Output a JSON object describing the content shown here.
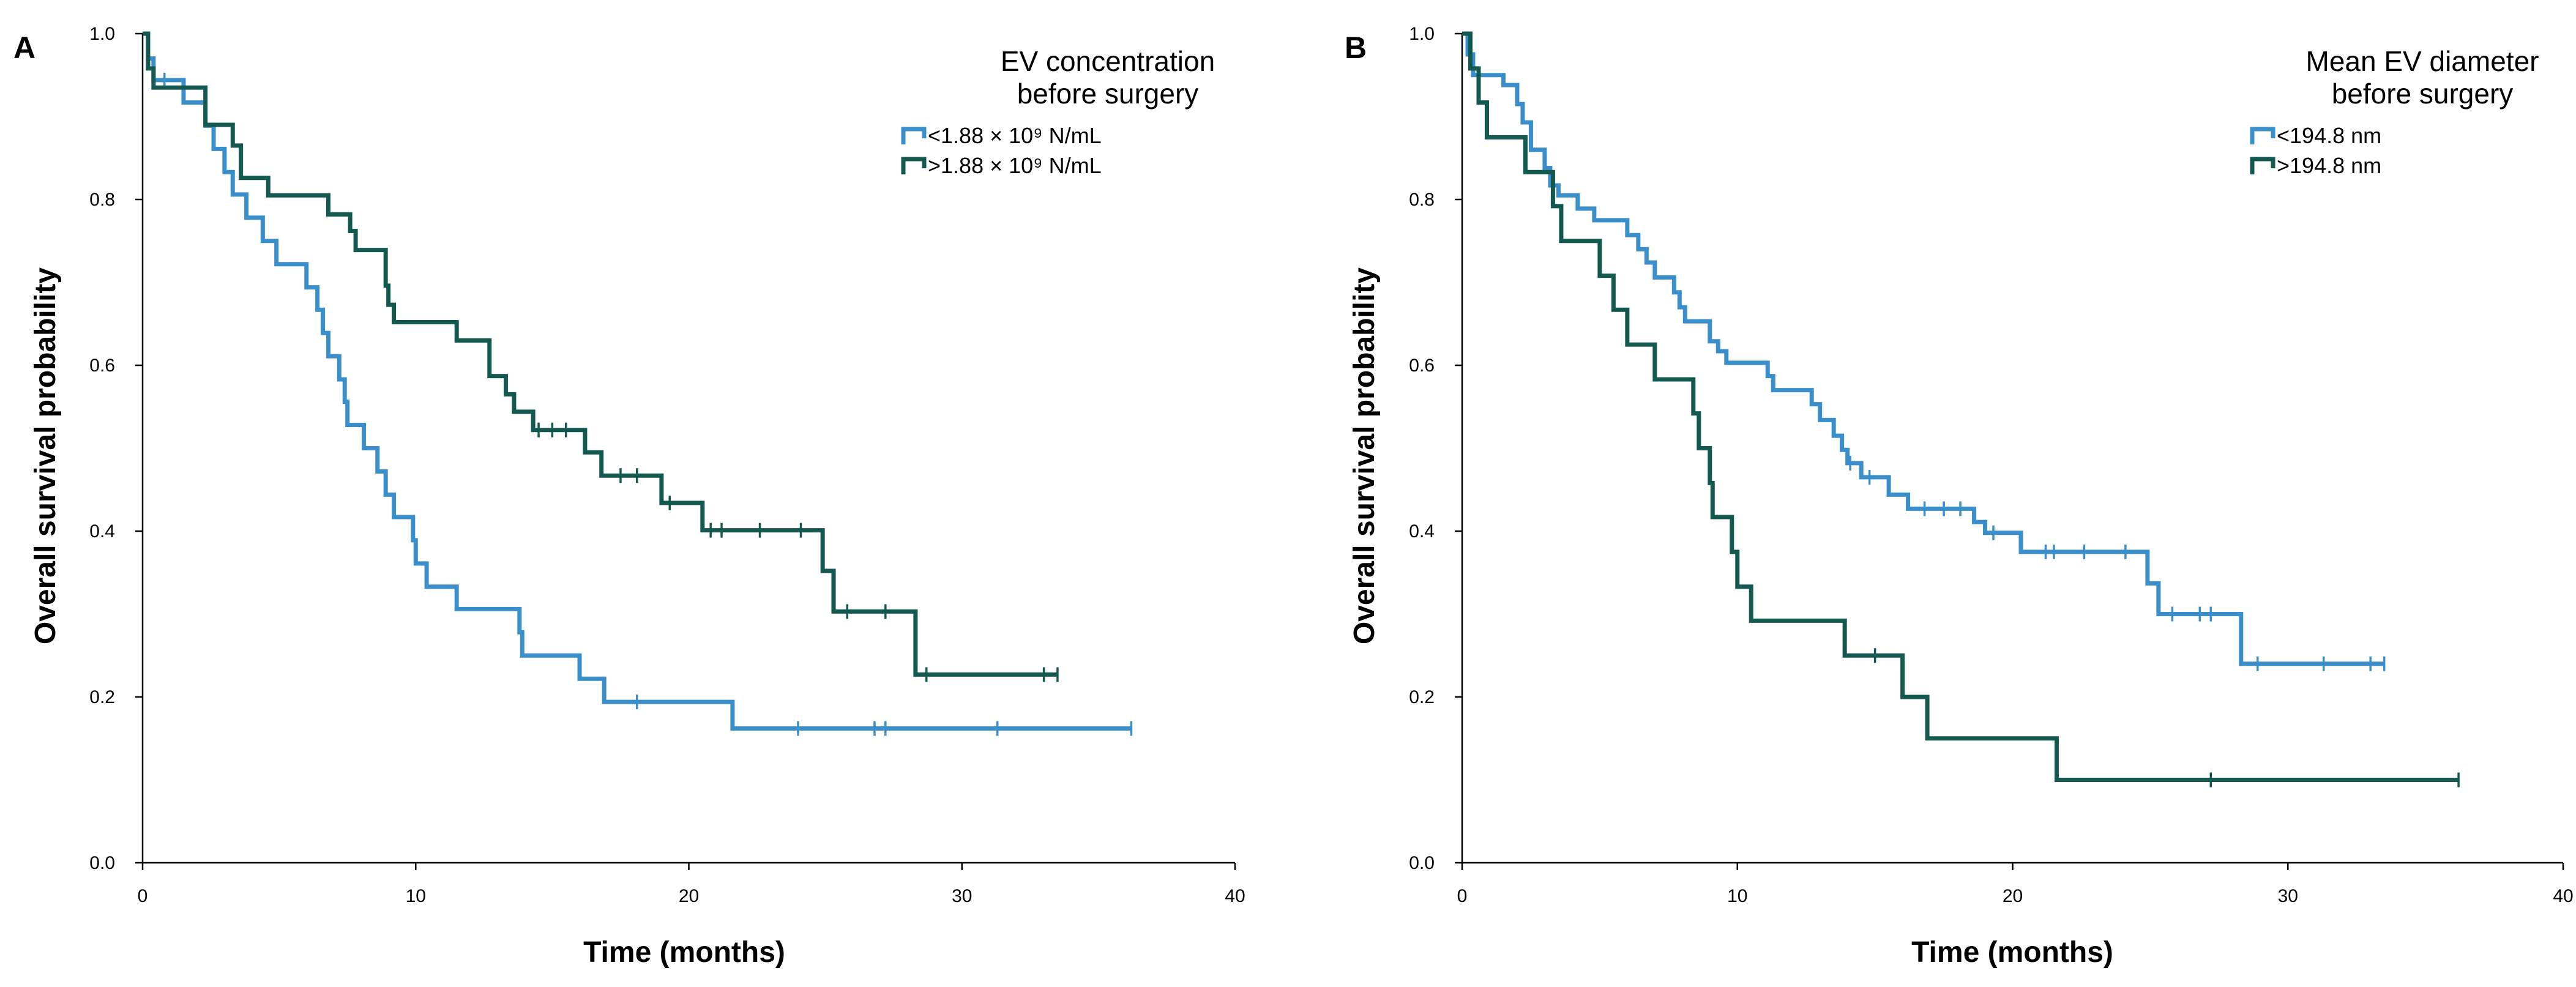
{
  "chart_data": [
    {
      "type": "line",
      "panel_label": "A",
      "xlabel": "Time (months)",
      "ylabel": "Overall survival probability",
      "xlim": [
        0,
        40
      ],
      "ylim": [
        0,
        1
      ],
      "xticks": [
        "0",
        "10",
        "20",
        "30",
        "40"
      ],
      "yticks": [
        "0.0",
        "0.2",
        "0.4",
        "0.6",
        "0.8",
        "1.0"
      ],
      "legend": {
        "position": "top-right",
        "title_lines": [
          "EV concentration",
          "before surgery"
        ],
        "entries": [
          "<1.88 × 10⁹ N/mL",
          ">1.88 × 10⁹ N/mL"
        ]
      },
      "series": [
        {
          "name": "<1.88 × 10⁹ N/mL",
          "color": "#3a8fcb",
          "steps": [
            [
              0,
              1.0
            ],
            [
              0.2,
              0.97
            ],
            [
              0.4,
              0.944
            ],
            [
              1.5,
              0.917
            ],
            [
              2.3,
              0.889
            ],
            [
              2.6,
              0.861
            ],
            [
              3.0,
              0.833
            ],
            [
              3.3,
              0.806
            ],
            [
              3.8,
              0.778
            ],
            [
              4.4,
              0.75
            ],
            [
              4.9,
              0.722
            ],
            [
              6.0,
              0.694
            ],
            [
              6.4,
              0.667
            ],
            [
              6.6,
              0.639
            ],
            [
              6.8,
              0.611
            ],
            [
              7.2,
              0.583
            ],
            [
              7.4,
              0.556
            ],
            [
              7.5,
              0.528
            ],
            [
              8.1,
              0.5
            ],
            [
              8.6,
              0.472
            ],
            [
              8.9,
              0.444
            ],
            [
              9.2,
              0.417
            ],
            [
              9.9,
              0.389
            ],
            [
              10.0,
              0.361
            ],
            [
              10.4,
              0.333
            ],
            [
              11.5,
              0.306
            ],
            [
              13.8,
              0.278
            ],
            [
              13.9,
              0.25
            ],
            [
              16.0,
              0.222
            ],
            [
              16.9,
              0.194
            ],
            [
              21.6,
              0.162
            ]
          ],
          "end": 36.2,
          "censor": [
            [
              0.8,
              0.944
            ],
            [
              18.1,
              0.194
            ],
            [
              24.0,
              0.162
            ],
            [
              26.8,
              0.162
            ],
            [
              27.2,
              0.162
            ],
            [
              31.3,
              0.162
            ],
            [
              36.2,
              0.162
            ]
          ]
        },
        {
          "name": ">1.88 × 10⁹ N/mL",
          "color": "#14594f",
          "steps": [
            [
              0,
              1.0
            ],
            [
              0.2,
              0.958
            ],
            [
              0.4,
              0.935
            ],
            [
              2.3,
              0.89
            ],
            [
              3.3,
              0.865
            ],
            [
              3.6,
              0.826
            ],
            [
              4.6,
              0.805
            ],
            [
              6.8,
              0.782
            ],
            [
              7.6,
              0.762
            ],
            [
              7.8,
              0.739
            ],
            [
              8.9,
              0.696
            ],
            [
              9.0,
              0.673
            ],
            [
              9.2,
              0.652
            ],
            [
              11.5,
              0.63
            ],
            [
              12.7,
              0.587
            ],
            [
              13.3,
              0.565
            ],
            [
              13.6,
              0.544
            ],
            [
              14.3,
              0.522
            ],
            [
              16.2,
              0.495
            ],
            [
              16.8,
              0.467
            ],
            [
              19.0,
              0.434
            ],
            [
              20.5,
              0.401
            ],
            [
              24.9,
              0.352
            ],
            [
              25.3,
              0.303
            ],
            [
              28.3,
              0.227
            ]
          ],
          "end": 33.5,
          "censor": [
            [
              14.5,
              0.522
            ],
            [
              15.0,
              0.522
            ],
            [
              15.5,
              0.522
            ],
            [
              17.5,
              0.467
            ],
            [
              18.1,
              0.467
            ],
            [
              19.3,
              0.434
            ],
            [
              20.8,
              0.401
            ],
            [
              21.2,
              0.401
            ],
            [
              22.6,
              0.401
            ],
            [
              24.1,
              0.401
            ],
            [
              25.8,
              0.303
            ],
            [
              27.2,
              0.303
            ],
            [
              28.7,
              0.227
            ],
            [
              33.0,
              0.227
            ],
            [
              33.5,
              0.227
            ]
          ]
        }
      ]
    },
    {
      "type": "line",
      "panel_label": "B",
      "xlabel": "Time (months)",
      "ylabel": "Overall survival probability",
      "xlim": [
        0,
        40
      ],
      "ylim": [
        0,
        1
      ],
      "xticks": [
        "0",
        "10",
        "20",
        "30",
        "40"
      ],
      "yticks": [
        "0.0",
        "0.2",
        "0.4",
        "0.6",
        "0.8",
        "1.0"
      ],
      "legend": {
        "position": "top-right",
        "title_lines": [
          "Mean EV diameter",
          "before surgery"
        ],
        "entries": [
          "<194.8 nm",
          ">194.8 nm"
        ]
      },
      "series": [
        {
          "name": "<194.8 nm",
          "color": "#3a8fcb",
          "steps": [
            [
              0,
              1.0
            ],
            [
              0.2,
              0.975
            ],
            [
              0.4,
              0.95
            ],
            [
              1.5,
              0.938
            ],
            [
              2.0,
              0.915
            ],
            [
              2.2,
              0.893
            ],
            [
              2.5,
              0.86
            ],
            [
              3.0,
              0.838
            ],
            [
              3.2,
              0.817
            ],
            [
              3.5,
              0.805
            ],
            [
              4.2,
              0.789
            ],
            [
              4.8,
              0.775
            ],
            [
              6.0,
              0.757
            ],
            [
              6.4,
              0.74
            ],
            [
              6.7,
              0.724
            ],
            [
              7.0,
              0.706
            ],
            [
              7.7,
              0.688
            ],
            [
              7.9,
              0.67
            ],
            [
              8.1,
              0.653
            ],
            [
              9.0,
              0.629
            ],
            [
              9.3,
              0.617
            ],
            [
              9.6,
              0.603
            ],
            [
              11.1,
              0.587
            ],
            [
              11.3,
              0.57
            ],
            [
              12.7,
              0.553
            ],
            [
              13.0,
              0.534
            ],
            [
              13.5,
              0.515
            ],
            [
              13.8,
              0.498
            ],
            [
              14.0,
              0.482
            ],
            [
              14.5,
              0.465
            ],
            [
              15.5,
              0.444
            ],
            [
              16.2,
              0.427
            ],
            [
              18.6,
              0.411
            ],
            [
              19.0,
              0.398
            ],
            [
              20.3,
              0.375
            ],
            [
              24.9,
              0.337
            ],
            [
              25.3,
              0.3
            ],
            [
              28.3,
              0.24
            ]
          ],
          "end": 33.5,
          "censor": [
            [
              14.1,
              0.482
            ],
            [
              14.8,
              0.465
            ],
            [
              16.8,
              0.427
            ],
            [
              17.5,
              0.427
            ],
            [
              18.1,
              0.427
            ],
            [
              19.3,
              0.398
            ],
            [
              21.2,
              0.375
            ],
            [
              21.5,
              0.375
            ],
            [
              22.6,
              0.375
            ],
            [
              24.1,
              0.375
            ],
            [
              25.8,
              0.3
            ],
            [
              26.8,
              0.3
            ],
            [
              27.2,
              0.3
            ],
            [
              28.9,
              0.24
            ],
            [
              31.3,
              0.24
            ],
            [
              33.0,
              0.24
            ],
            [
              33.5,
              0.24
            ]
          ]
        },
        {
          "name": ">194.8 nm",
          "color": "#14594f",
          "steps": [
            [
              0,
              1.0
            ],
            [
              0.3,
              0.958
            ],
            [
              0.6,
              0.917
            ],
            [
              0.9,
              0.875
            ],
            [
              2.3,
              0.833
            ],
            [
              3.3,
              0.792
            ],
            [
              3.6,
              0.75
            ],
            [
              5.0,
              0.708
            ],
            [
              5.5,
              0.667
            ],
            [
              6.0,
              0.625
            ],
            [
              7.0,
              0.583
            ],
            [
              8.4,
              0.542
            ],
            [
              8.6,
              0.5
            ],
            [
              9.0,
              0.458
            ],
            [
              9.1,
              0.417
            ],
            [
              9.8,
              0.375
            ],
            [
              10.0,
              0.333
            ],
            [
              10.5,
              0.292
            ],
            [
              13.9,
              0.25
            ],
            [
              16.0,
              0.2
            ],
            [
              16.9,
              0.15
            ],
            [
              21.6,
              0.1
            ]
          ],
          "end": 36.2,
          "censor": [
            [
              15.0,
              0.25
            ],
            [
              27.2,
              0.1
            ],
            [
              36.2,
              0.1
            ]
          ]
        }
      ]
    }
  ]
}
